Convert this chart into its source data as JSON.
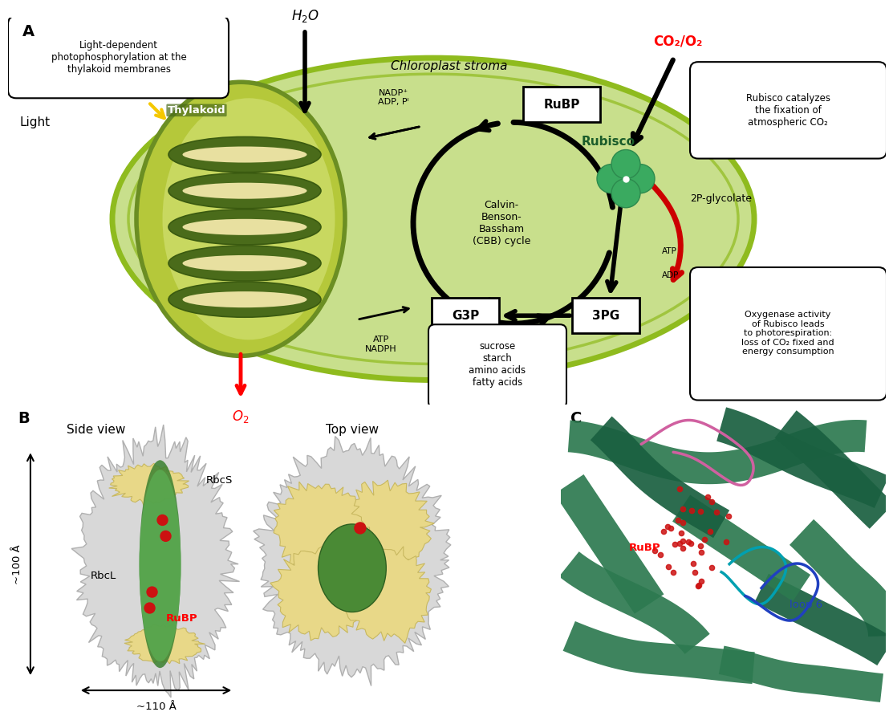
{
  "panel_A_label": "A",
  "panel_B_label": "B",
  "panel_C_label": "C",
  "title_A": "Chloroplast stroma",
  "chloroplast_fill": "#c8df8c",
  "chloroplast_border": "#8fbb1e",
  "thylakoid_fill": "#b5c83a",
  "thylakoid_border": "#6b8e23",
  "grana_dark": "#4a6b1a",
  "grana_light": "#e8e0a0",
  "light_color": "#f5c800",
  "light_label": "Light",
  "water_label": "H₂O",
  "o2_label": "O₂",
  "co2o2_label": "CO₂/O₂",
  "thylakoid_label": "Thylakoid",
  "stroma_label": "Chloroplast stroma",
  "rubp_label": "RuBP",
  "rubisco_label": "Rubisco",
  "g3p_label": "G3P",
  "pg3_label": "3PG",
  "cbb_label": "Calvin-\nBenson-\nBassham\n(CBB) cycle",
  "nadp_label": "NADP⁺\nADP, Pᴵ",
  "atp_nadph_label": "ATP\nNADPH",
  "atp_label": "ATP",
  "adp_label": "ADP",
  "glycolate_label": "2P-glycolate",
  "co2_label": "CO₂",
  "products_label": "sucrose\nstarch\namino acids\nfatty acids",
  "box1_text": "Light-dependent\nphotophosphorylation at the\nthylakoid membranes",
  "box2_text": "Rubisco catalyzes\nthe fixation of\natmospheric CO₂",
  "box3_text": "Oxygenase activity\nof Rubisco leads\nto photorespiration:\nloss of CO₂ fixed and\nenergy consumption",
  "side_view_label": "Side view",
  "top_view_label": "Top view",
  "rbcs_label": "RbcS",
  "rbcl_label": "RbcL",
  "rubp_b_label": "RuBP",
  "rubp_c_label": "RuBP",
  "loop6_label": "loop 6",
  "size_100_label": "~100 Å",
  "size_110_label": "~110 Å",
  "bg_color": "#ffffff",
  "rubisco_green": "#2d8a4e",
  "rubisco_green2": "#3aaa60"
}
